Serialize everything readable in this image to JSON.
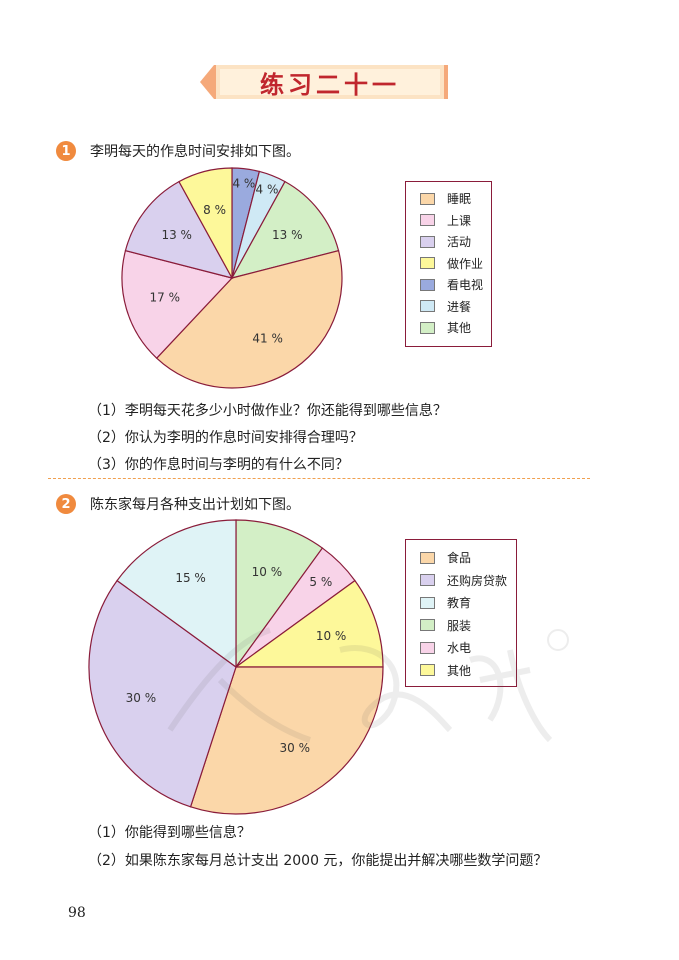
{
  "header": {
    "title": "练习二十一"
  },
  "q1": {
    "number": "1",
    "text": "李明每天的作息时间安排如下图。",
    "questions": [
      "（1）李明每天花多少小时做作业？你还能得到哪些信息？",
      "（2）你认为李明的作息时间安排得合理吗？",
      "（3）你的作息时间与李明的有什么不同？"
    ]
  },
  "q2": {
    "number": "2",
    "text": "陈东家每月各种支出计划如下图。",
    "questions": [
      "（1）你能得到哪些信息？",
      "（2）如果陈东家每月总计支出 2000 元，你能提出并解决哪些数学问题？"
    ]
  },
  "chart_data": [
    {
      "type": "pie",
      "categories": [
        "睡眠",
        "上课",
        "活动",
        "做作业",
        "看电视",
        "进餐",
        "其他"
      ],
      "values": [
        41,
        17,
        13,
        8,
        4,
        4,
        13
      ],
      "labels": [
        "41 %",
        "17 %",
        "13 %",
        "8 %",
        "4 %",
        "4 %",
        "13 %"
      ],
      "colors": [
        "#fbd7a9",
        "#f8d3e8",
        "#d9d0ee",
        "#fdf89a",
        "#9aaade",
        "#cfe9f5",
        "#d3efc6"
      ],
      "legend": "right"
    },
    {
      "type": "pie",
      "categories": [
        "食品",
        "还购房贷款",
        "教育",
        "服装",
        "水电",
        "其他"
      ],
      "values": [
        30,
        30,
        15,
        10,
        5,
        10
      ],
      "labels": [
        "30 %",
        "30 %",
        "15 %",
        "10 %",
        "5 %",
        "10 %"
      ],
      "colors": [
        "#fbd7a9",
        "#d9d0ee",
        "#dff3f6",
        "#d3efc6",
        "#f8d3e8",
        "#fdf89a"
      ],
      "legend": "right"
    }
  ],
  "page_number": "98"
}
